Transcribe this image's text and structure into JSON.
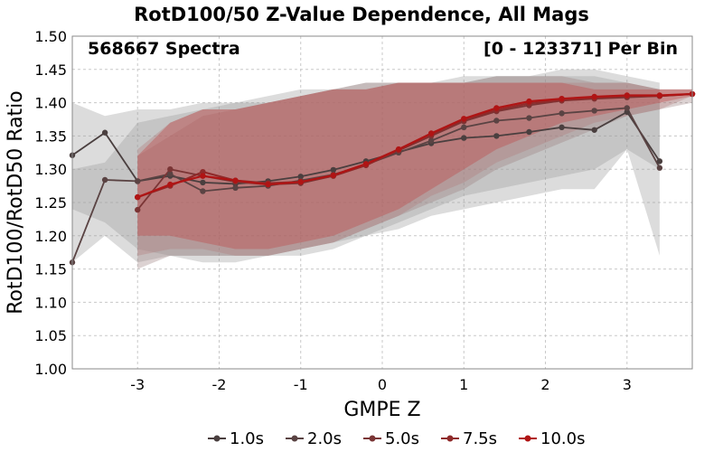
{
  "chart_data": {
    "type": "line",
    "title": "RotD100/50 Z-Value Dependence, All Mags",
    "annotation_left": "568667 Spectra",
    "annotation_right": "[0 - 123371] Per Bin",
    "xlabel": "GMPE Z",
    "ylabel": "RotD100/RotD50 Ratio",
    "xlim": [
      -3.8,
      3.8
    ],
    "ylim": [
      1.0,
      1.5
    ],
    "xticks": [
      "-3",
      "-2",
      "-1",
      "0",
      "1",
      "2",
      "3"
    ],
    "yticks": [
      "1.00",
      "1.05",
      "1.10",
      "1.15",
      "1.20",
      "1.25",
      "1.30",
      "1.35",
      "1.40",
      "1.45",
      "1.50"
    ],
    "grid": true,
    "legend_position": "bottom",
    "series": [
      {
        "name": "1.0s",
        "color": "#4a3f3f",
        "x": [
          -3.8,
          -3.4,
          -3.0,
          -2.6,
          -2.2,
          -1.8,
          -1.4,
          -1.0,
          -0.6,
          -0.2,
          0.2,
          0.6,
          1.0,
          1.4,
          1.8,
          2.2,
          2.6,
          3.0,
          3.4
        ],
        "y": [
          1.321,
          1.355,
          1.282,
          1.29,
          1.28,
          1.278,
          1.282,
          1.289,
          1.299,
          1.312,
          1.326,
          1.339,
          1.347,
          1.35,
          1.356,
          1.363,
          1.359,
          1.386,
          1.312
        ],
        "band_lower": [
          1.24,
          1.22,
          1.18,
          1.17,
          1.16,
          1.16,
          1.17,
          1.17,
          1.18,
          1.2,
          1.21,
          1.23,
          1.24,
          1.25,
          1.26,
          1.27,
          1.27,
          1.33,
          1.17
        ],
        "band_upper": [
          1.4,
          1.38,
          1.39,
          1.39,
          1.4,
          1.4,
          1.41,
          1.42,
          1.42,
          1.43,
          1.43,
          1.43,
          1.44,
          1.44,
          1.44,
          1.45,
          1.45,
          1.44,
          1.43
        ]
      },
      {
        "name": "2.0s",
        "color": "#5a4343",
        "x": [
          -3.8,
          -3.4,
          -3.0,
          -2.6,
          -2.2,
          -1.8,
          -1.4,
          -1.0,
          -0.6,
          -0.2,
          0.2,
          0.6,
          1.0,
          1.4,
          1.8,
          2.2,
          2.6,
          3.0,
          3.4
        ],
        "y": [
          1.16,
          1.284,
          1.282,
          1.293,
          1.267,
          1.272,
          1.275,
          1.283,
          1.292,
          1.307,
          1.325,
          1.343,
          1.363,
          1.373,
          1.377,
          1.384,
          1.388,
          1.392,
          1.302
        ],
        "band_lower": [
          1.16,
          1.2,
          1.16,
          1.17,
          1.17,
          1.17,
          1.17,
          1.18,
          1.19,
          1.2,
          1.22,
          1.24,
          1.26,
          1.27,
          1.28,
          1.29,
          1.3,
          1.33,
          1.3
        ],
        "band_upper": [
          1.3,
          1.31,
          1.37,
          1.38,
          1.39,
          1.4,
          1.4,
          1.41,
          1.42,
          1.42,
          1.43,
          1.43,
          1.43,
          1.44,
          1.44,
          1.44,
          1.44,
          1.43,
          1.42
        ]
      },
      {
        "name": "5.0s",
        "color": "#7a3535",
        "x": [
          -3.0,
          -2.6,
          -2.2,
          -1.8,
          -1.4,
          -1.0,
          -0.6,
          -0.2,
          0.2,
          0.6,
          1.0,
          1.4,
          1.8,
          2.2,
          2.6,
          3.0,
          3.4,
          3.8
        ],
        "y": [
          1.239,
          1.3,
          1.29,
          1.281,
          1.277,
          1.279,
          1.29,
          1.306,
          1.328,
          1.35,
          1.372,
          1.387,
          1.396,
          1.403,
          1.406,
          1.408,
          1.41,
          1.413
        ],
        "band_lower": [
          1.15,
          1.17,
          1.17,
          1.17,
          1.17,
          1.18,
          1.19,
          1.21,
          1.23,
          1.25,
          1.27,
          1.3,
          1.32,
          1.34,
          1.36,
          1.38,
          1.39,
          1.4
        ],
        "band_upper": [
          1.32,
          1.35,
          1.38,
          1.39,
          1.4,
          1.41,
          1.42,
          1.43,
          1.43,
          1.43,
          1.43,
          1.44,
          1.44,
          1.44,
          1.43,
          1.43,
          1.42,
          1.42
        ]
      },
      {
        "name": "7.5s",
        "color": "#8f2a2a",
        "x": [
          -3.0,
          -2.6,
          -2.2,
          -1.8,
          -1.4,
          -1.0,
          -0.6,
          -0.2,
          0.2,
          0.6,
          1.0,
          1.4,
          1.8,
          2.2,
          2.6,
          3.0,
          3.4,
          3.8
        ],
        "y": [
          1.258,
          1.275,
          1.296,
          1.283,
          1.279,
          1.281,
          1.29,
          1.306,
          1.329,
          1.352,
          1.374,
          1.389,
          1.399,
          1.404,
          1.407,
          1.41,
          1.41,
          1.413
        ],
        "band_lower": [
          1.17,
          1.18,
          1.18,
          1.17,
          1.17,
          1.18,
          1.19,
          1.21,
          1.23,
          1.26,
          1.28,
          1.31,
          1.33,
          1.35,
          1.37,
          1.38,
          1.39,
          1.41
        ],
        "band_upper": [
          1.33,
          1.37,
          1.39,
          1.39,
          1.4,
          1.41,
          1.42,
          1.42,
          1.43,
          1.43,
          1.43,
          1.43,
          1.43,
          1.43,
          1.43,
          1.43,
          1.42,
          1.42
        ]
      },
      {
        "name": "10.0s",
        "color": "#b01414",
        "x": [
          -3.0,
          -2.6,
          -2.2,
          -1.8,
          -1.4,
          -1.0,
          -0.6,
          -0.2,
          0.2,
          0.6,
          1.0,
          1.4,
          1.8,
          2.2,
          2.6,
          3.0,
          3.4,
          3.8
        ],
        "y": [
          1.258,
          1.277,
          1.29,
          1.283,
          1.277,
          1.281,
          1.291,
          1.308,
          1.33,
          1.354,
          1.376,
          1.392,
          1.402,
          1.406,
          1.409,
          1.411,
          1.411,
          1.413
        ],
        "band_lower": [
          1.2,
          1.2,
          1.19,
          1.18,
          1.18,
          1.19,
          1.2,
          1.22,
          1.24,
          1.27,
          1.3,
          1.33,
          1.35,
          1.37,
          1.38,
          1.39,
          1.4,
          1.41
        ],
        "band_upper": [
          1.32,
          1.37,
          1.39,
          1.39,
          1.4,
          1.41,
          1.42,
          1.42,
          1.43,
          1.43,
          1.43,
          1.43,
          1.43,
          1.43,
          1.42,
          1.42,
          1.42,
          1.42
        ]
      }
    ]
  }
}
